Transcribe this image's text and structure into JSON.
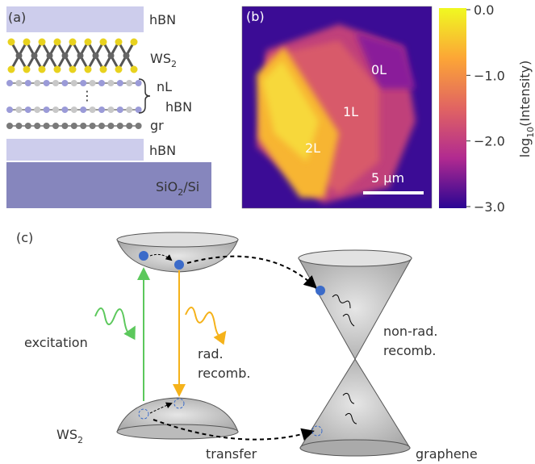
{
  "panels": {
    "a": {
      "label": "(a)",
      "layers": {
        "top": "hBN",
        "ws2": {
          "base": "WS",
          "sub": "2"
        },
        "nl": "nL",
        "hbn": "hBN",
        "gr": "gr",
        "bottom": "hBN",
        "substrate": {
          "base": "SiO",
          "sub": "2",
          "rest": "/Si"
        }
      }
    },
    "b": {
      "label": "(b)",
      "regions": [
        "0L",
        "1L",
        "2L"
      ],
      "scale_bar": "5 µm",
      "colorbar": {
        "ticks": [
          "0.0",
          "−1.0",
          "−2.0",
          "−3.0"
        ],
        "label": {
          "base": "log",
          "sub": "10",
          "rest": "(Intensity)"
        }
      }
    },
    "c": {
      "label": "(c)",
      "excitation": "excitation",
      "rad": "rad.",
      "rad_recomb": "recomb.",
      "ws2": {
        "base": "WS",
        "sub": "2"
      },
      "transfer": "transfer",
      "nonrad": "non-rad.",
      "nonrad_recomb": "recomb.",
      "graphene": "graphene"
    }
  }
}
